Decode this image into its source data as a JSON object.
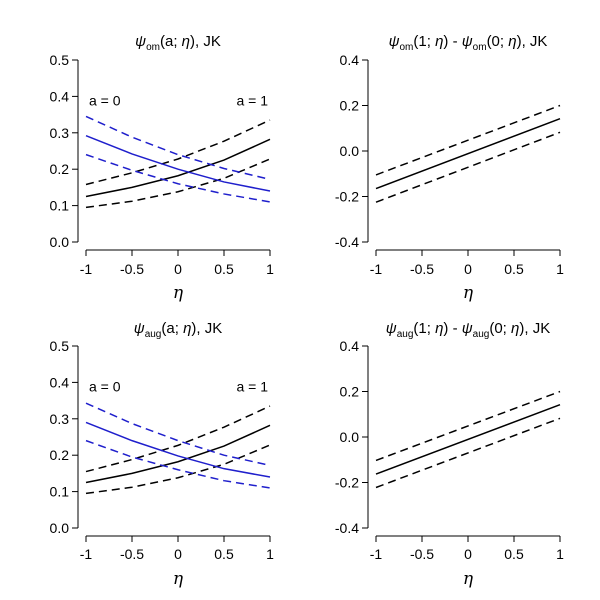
{
  "chart_data": [
    {
      "type": "line",
      "panel": "top-left",
      "title": "ψom(a; η), JK",
      "title_parts": {
        "pre": "ψ",
        "sub": "om",
        "post": "(a; η), JK"
      },
      "xlabel": "η",
      "ylabel": "",
      "xlim": [
        -1,
        1
      ],
      "ylim": [
        0,
        0.5
      ],
      "xticks": [
        -1,
        -0.5,
        0,
        0.5,
        1
      ],
      "xtick_labels": [
        "-1",
        "-0.5",
        "0",
        "0.5",
        "1"
      ],
      "yticks": [
        0,
        0.1,
        0.2,
        0.3,
        0.4,
        0.5
      ],
      "ytick_labels": [
        "0.0",
        "0.1",
        "0.2",
        "0.3",
        "0.4",
        "0.5"
      ],
      "annotations": [
        {
          "text": "a = 0",
          "position": "top-left"
        },
        {
          "text": "a = 1",
          "position": "top-right"
        }
      ],
      "x": [
        -1,
        -0.5,
        0,
        0.5,
        1
      ],
      "series": [
        {
          "color": "#000000",
          "style": "solid",
          "values": [
            0.125,
            0.15,
            0.182,
            0.225,
            0.282
          ]
        },
        {
          "color": "#000000",
          "style": "dashed",
          "values": [
            0.158,
            0.19,
            0.228,
            0.277,
            0.335
          ]
        },
        {
          "color": "#000000",
          "style": "dashed",
          "values": [
            0.095,
            0.112,
            0.138,
            0.175,
            0.228
          ]
        },
        {
          "color": "#1f1fcc",
          "style": "solid",
          "values": [
            0.292,
            0.242,
            0.2,
            0.165,
            0.14
          ]
        },
        {
          "color": "#1f1fcc",
          "style": "dashed",
          "values": [
            0.345,
            0.288,
            0.24,
            0.202,
            0.172
          ]
        },
        {
          "color": "#1f1fcc",
          "style": "dashed",
          "values": [
            0.24,
            0.197,
            0.16,
            0.132,
            0.11
          ]
        }
      ]
    },
    {
      "type": "line",
      "panel": "top-right",
      "title": "ψom(1; η) - ψom(0; η), JK",
      "title_parts": {
        "pre": "ψ",
        "sub": "om",
        "post": "(1; η) - ",
        "pre2": "ψ",
        "sub2": "om",
        "post2": "(0; η), JK"
      },
      "xlabel": "η",
      "ylabel": "",
      "xlim": [
        -1,
        1
      ],
      "ylim": [
        -0.4,
        0.4
      ],
      "xticks": [
        -1,
        -0.5,
        0,
        0.5,
        1
      ],
      "xtick_labels": [
        "-1",
        "-0.5",
        "0",
        "0.5",
        "1"
      ],
      "yticks": [
        -0.4,
        -0.2,
        0,
        0.2,
        0.4
      ],
      "ytick_labels": [
        "-0.4",
        "-0.2",
        "0.0",
        "0.2",
        "0.4"
      ],
      "annotations": [],
      "x": [
        -1,
        1
      ],
      "series": [
        {
          "color": "#000000",
          "style": "solid",
          "values": [
            -0.165,
            0.142
          ]
        },
        {
          "color": "#000000",
          "style": "dashed",
          "values": [
            -0.105,
            0.2
          ]
        },
        {
          "color": "#000000",
          "style": "dashed",
          "values": [
            -0.225,
            0.082
          ]
        }
      ]
    },
    {
      "type": "line",
      "panel": "bottom-left",
      "title": "ψaug(a; η), JK",
      "title_parts": {
        "pre": "ψ",
        "sub": "aug",
        "post": "(a; η), JK"
      },
      "xlabel": "η",
      "ylabel": "",
      "xlim": [
        -1,
        1
      ],
      "ylim": [
        0,
        0.5
      ],
      "xticks": [
        -1,
        -0.5,
        0,
        0.5,
        1
      ],
      "xtick_labels": [
        "-1",
        "-0.5",
        "0",
        "0.5",
        "1"
      ],
      "yticks": [
        0,
        0.1,
        0.2,
        0.3,
        0.4,
        0.5
      ],
      "ytick_labels": [
        "0.0",
        "0.1",
        "0.2",
        "0.3",
        "0.4",
        "0.5"
      ],
      "annotations": [
        {
          "text": "a = 0",
          "position": "top-left"
        },
        {
          "text": "a = 1",
          "position": "top-right"
        }
      ],
      "x": [
        -1,
        -0.5,
        0,
        0.5,
        1
      ],
      "series": [
        {
          "color": "#000000",
          "style": "solid",
          "values": [
            0.125,
            0.15,
            0.182,
            0.225,
            0.282
          ]
        },
        {
          "color": "#000000",
          "style": "dashed",
          "values": [
            0.155,
            0.188,
            0.227,
            0.277,
            0.335
          ]
        },
        {
          "color": "#000000",
          "style": "dashed",
          "values": [
            0.095,
            0.112,
            0.138,
            0.175,
            0.228
          ]
        },
        {
          "color": "#1f1fcc",
          "style": "solid",
          "values": [
            0.29,
            0.24,
            0.198,
            0.163,
            0.14
          ]
        },
        {
          "color": "#1f1fcc",
          "style": "dashed",
          "values": [
            0.343,
            0.287,
            0.24,
            0.2,
            0.172
          ]
        },
        {
          "color": "#1f1fcc",
          "style": "dashed",
          "values": [
            0.24,
            0.195,
            0.16,
            0.13,
            0.11
          ]
        }
      ]
    },
    {
      "type": "line",
      "panel": "bottom-right",
      "title": "ψaug(1; η) - ψaug(0; η), JK",
      "title_parts": {
        "pre": "ψ",
        "sub": "aug",
        "post": "(1; η) - ",
        "pre2": "ψ",
        "sub2": "aug",
        "post2": "(0; η), JK"
      },
      "xlabel": "η",
      "ylabel": "",
      "xlim": [
        -1,
        1
      ],
      "ylim": [
        -0.4,
        0.4
      ],
      "xticks": [
        -1,
        -0.5,
        0,
        0.5,
        1
      ],
      "xtick_labels": [
        "-1",
        "-0.5",
        "0",
        "0.5",
        "1"
      ],
      "yticks": [
        -0.4,
        -0.2,
        0,
        0.2,
        0.4
      ],
      "ytick_labels": [
        "-0.4",
        "-0.2",
        "0.0",
        "0.2",
        "0.4"
      ],
      "annotations": [],
      "x": [
        -1,
        1
      ],
      "series": [
        {
          "color": "#000000",
          "style": "solid",
          "values": [
            -0.163,
            0.142
          ]
        },
        {
          "color": "#000000",
          "style": "dashed",
          "values": [
            -0.103,
            0.2
          ]
        },
        {
          "color": "#000000",
          "style": "dashed",
          "values": [
            -0.222,
            0.082
          ]
        }
      ]
    }
  ]
}
